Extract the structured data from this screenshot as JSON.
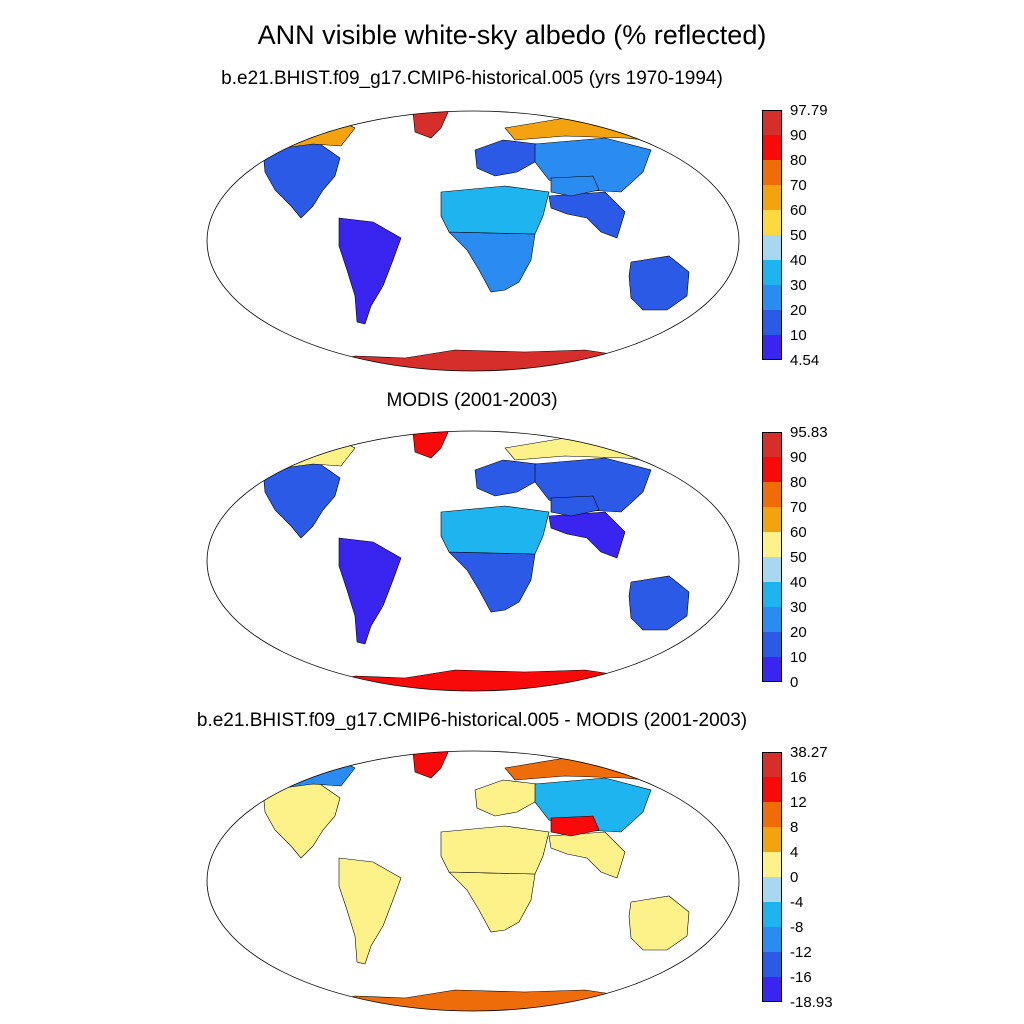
{
  "title": "ANN visible white-sky albedo (% reflected)",
  "panels": [
    {
      "id": "model",
      "title": "b.e21.BHIST.f09_g17.CMIP6-historical.005 (yrs 1970-1994)",
      "colorbar": {
        "labels": [
          "97.79",
          "90",
          "80",
          "70",
          "60",
          "50",
          "40",
          "30",
          "20",
          "10",
          "4.54"
        ],
        "colors": [
          "#d62e2b",
          "#f80a0a",
          "#ef6c0a",
          "#f4a310",
          "#fdd940",
          "#a8d8f0",
          "#1eb4f0",
          "#2a8cf0",
          "#2a5ae6",
          "#3a24f0"
        ]
      }
    },
    {
      "id": "obs",
      "title": "MODIS (2001-2003)",
      "colorbar": {
        "labels": [
          "95.83",
          "90",
          "80",
          "70",
          "60",
          "50",
          "40",
          "30",
          "20",
          "10",
          "0"
        ],
        "colors": [
          "#d62e2b",
          "#f80a0a",
          "#ef6c0a",
          "#f4a310",
          "#fdf28a",
          "#a8d8f0",
          "#1eb4f0",
          "#2a8cf0",
          "#2a5ae6",
          "#3a24f0"
        ]
      }
    },
    {
      "id": "diff",
      "title": "b.e21.BHIST.f09_g17.CMIP6-historical.005 - MODIS (2001-2003)",
      "colorbar": {
        "labels": [
          "38.27",
          "16",
          "12",
          "8",
          "4",
          "0",
          "-4",
          "-8",
          "-12",
          "-16",
          "-18.93"
        ],
        "colors": [
          "#d62e2b",
          "#f80a0a",
          "#ef6c0a",
          "#f4a310",
          "#fdf28a",
          "#a8d8f0",
          "#1eb4f0",
          "#2a8cf0",
          "#2a5ae6",
          "#3a24f0"
        ]
      }
    }
  ],
  "chart_data": [
    {
      "type": "heatmap",
      "title": "b.e21.BHIST.f09_g17.CMIP6-historical.005 (yrs 1970-1994)",
      "projection": "robinson",
      "range": [
        4.54,
        97.79
      ],
      "levels": [
        10,
        20,
        30,
        40,
        50,
        60,
        70,
        80,
        90
      ],
      "regions": [
        {
          "name": "North America",
          "value": 15
        },
        {
          "name": "Canada Arctic",
          "value": 60
        },
        {
          "name": "Greenland",
          "value": 95
        },
        {
          "name": "South America",
          "value": 7
        },
        {
          "name": "Europe",
          "value": 12
        },
        {
          "name": "Siberia",
          "value": 20
        },
        {
          "name": "Arctic Eurasia",
          "value": 62
        },
        {
          "name": "Africa",
          "value": 22
        },
        {
          "name": "Sahara",
          "value": 32
        },
        {
          "name": "Asia",
          "value": 12
        },
        {
          "name": "Tibet",
          "value": 28
        },
        {
          "name": "Australia",
          "value": 18
        },
        {
          "name": "Antarctica",
          "value": 96
        }
      ]
    },
    {
      "type": "heatmap",
      "title": "MODIS (2001-2003)",
      "projection": "robinson",
      "range": [
        0,
        95.83
      ],
      "levels": [
        10,
        20,
        30,
        40,
        50,
        60,
        70,
        80,
        90
      ],
      "regions": [
        {
          "name": "North America",
          "value": 12
        },
        {
          "name": "Canada Arctic",
          "value": 50
        },
        {
          "name": "Greenland",
          "value": 88
        },
        {
          "name": "South America",
          "value": 5
        },
        {
          "name": "Europe",
          "value": 10
        },
        {
          "name": "Siberia",
          "value": 18
        },
        {
          "name": "Arctic Eurasia",
          "value": 52
        },
        {
          "name": "Africa",
          "value": 15
        },
        {
          "name": "Sahara",
          "value": 32
        },
        {
          "name": "Asia",
          "value": 8
        },
        {
          "name": "Tibet",
          "value": 15
        },
        {
          "name": "Australia",
          "value": 15
        },
        {
          "name": "Antarctica",
          "value": 88
        }
      ]
    },
    {
      "type": "heatmap",
      "title": "b.e21.BHIST.f09_g17.CMIP6-historical.005 - MODIS (2001-2003)",
      "projection": "robinson",
      "range": [
        -18.93,
        38.27
      ],
      "levels": [
        -16,
        -12,
        -8,
        -4,
        0,
        4,
        8,
        12,
        16
      ],
      "regions": [
        {
          "name": "North America",
          "value": 2
        },
        {
          "name": "Canada Arctic",
          "value": -12
        },
        {
          "name": "Greenland",
          "value": 14
        },
        {
          "name": "South America",
          "value": 2
        },
        {
          "name": "Europe",
          "value": 2
        },
        {
          "name": "Siberia",
          "value": -6
        },
        {
          "name": "Arctic Eurasia",
          "value": 10
        },
        {
          "name": "Africa",
          "value": 2
        },
        {
          "name": "Sahara",
          "value": 2
        },
        {
          "name": "Asia",
          "value": 2
        },
        {
          "name": "Tibet",
          "value": 14
        },
        {
          "name": "Australia",
          "value": 2
        },
        {
          "name": "Antarctica",
          "value": 8
        }
      ]
    }
  ]
}
